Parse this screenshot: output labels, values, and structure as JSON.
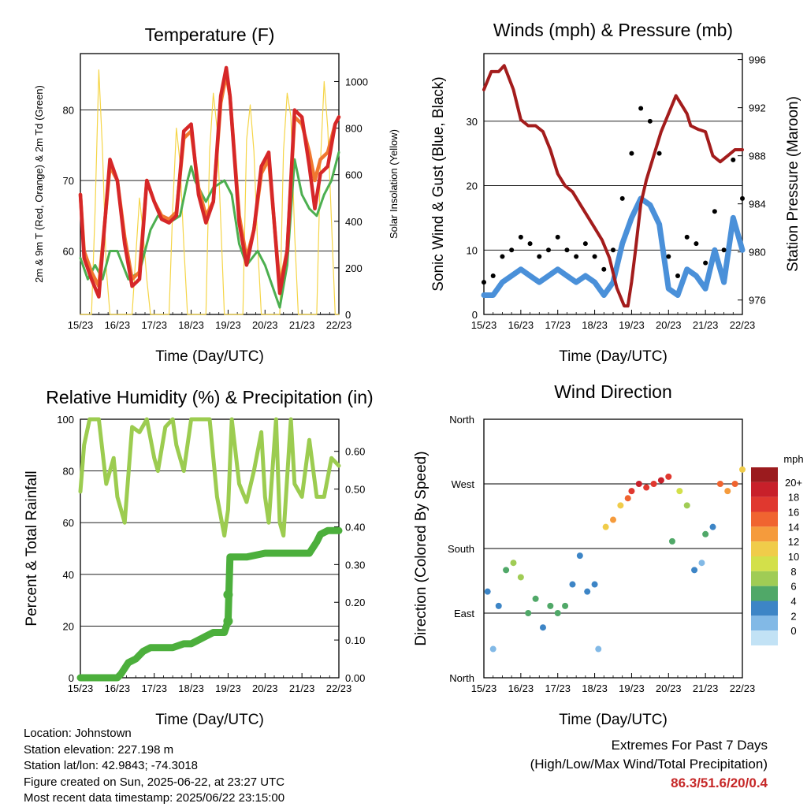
{
  "chart_data": [
    {
      "type": "line",
      "title": "Temperature (F)",
      "xlabel": "Time (Day/UTC)",
      "ylabel": "2m & 9m T (Red, Orange) & 2m Td (Green)",
      "y2label": "Solar Insolation (Yellow)",
      "x_ticks": [
        "15/23",
        "16/23",
        "17/23",
        "18/23",
        "19/23",
        "20/23",
        "21/23",
        "22/23"
      ],
      "y_ticks": [
        60,
        70,
        80
      ],
      "y2_ticks": [
        0,
        200,
        400,
        600,
        800,
        1000
      ],
      "ylim": [
        51,
        88
      ],
      "y2lim": [
        0,
        1120
      ],
      "grid": "horizontal",
      "series": [
        {
          "name": "2m T",
          "color": "#d62728",
          "x": [
            0,
            0.1,
            0.3,
            0.5,
            0.8,
            1.0,
            1.2,
            1.4,
            1.6,
            1.8,
            2.0,
            2.2,
            2.4,
            2.6,
            2.8,
            3.0,
            3.2,
            3.4,
            3.6,
            3.8,
            3.95,
            4.05,
            4.3,
            4.5,
            4.7,
            4.9,
            5.1,
            5.25,
            5.4,
            5.6,
            5.8,
            6.0,
            6.2,
            6.35,
            6.5,
            6.7,
            6.9,
            7.0
          ],
          "y": [
            68,
            59,
            56,
            53.5,
            73,
            70,
            61,
            55,
            56,
            70,
            67,
            64.5,
            64,
            65,
            77,
            78,
            68,
            64,
            67,
            82,
            86,
            82,
            64,
            58,
            63,
            72,
            74,
            64,
            54,
            60,
            80,
            79,
            72,
            66,
            71,
            72,
            78,
            79
          ]
        },
        {
          "name": "9m T",
          "color": "#f07830",
          "x": [
            0,
            0.1,
            0.3,
            0.5,
            0.8,
            1.0,
            1.2,
            1.4,
            1.6,
            1.8,
            2.0,
            2.2,
            2.4,
            2.6,
            2.8,
            3.0,
            3.2,
            3.4,
            3.6,
            3.8,
            3.95,
            4.05,
            4.3,
            4.5,
            4.7,
            4.9,
            5.1,
            5.25,
            5.4,
            5.6,
            5.8,
            6.0,
            6.2,
            6.35,
            6.5,
            6.7,
            6.9,
            7.0
          ],
          "y": [
            68,
            60,
            57,
            55,
            72,
            70,
            62,
            56,
            57,
            70,
            67,
            65,
            64.5,
            65.5,
            76,
            77,
            69,
            65,
            67,
            81,
            85,
            82,
            65,
            59,
            63,
            71,
            73,
            64,
            55,
            60,
            79,
            78,
            74,
            70,
            73,
            74,
            78,
            79
          ]
        },
        {
          "name": "2m Td",
          "color": "#4caf50",
          "x": [
            0,
            0.2,
            0.4,
            0.6,
            0.8,
            1.0,
            1.3,
            1.6,
            1.9,
            2.1,
            2.4,
            2.7,
            2.9,
            3.0,
            3.1,
            3.4,
            3.6,
            3.9,
            4.1,
            4.3,
            4.5,
            4.8,
            5.0,
            5.2,
            5.4,
            5.6,
            5.8,
            6.0,
            6.2,
            6.4,
            6.6,
            6.8,
            7.0
          ],
          "y": [
            59,
            56,
            58,
            56,
            60,
            60,
            56,
            57,
            63,
            65,
            64,
            65,
            70,
            72,
            70,
            67,
            69,
            70,
            68,
            61,
            58,
            60,
            58,
            55,
            52,
            58,
            73,
            68,
            66,
            65,
            68,
            70,
            74
          ]
        },
        {
          "name": "Solar Insolation",
          "color": "#f5d547",
          "axis": "y2",
          "x": [
            0,
            0.1,
            0.2,
            0.3,
            0.4,
            0.5,
            0.6,
            0.7,
            0.8,
            0.9,
            1.0,
            1.1,
            1.2,
            1.3,
            1.4,
            1.5,
            1.6,
            1.7,
            1.8,
            1.9,
            2.0,
            2.1,
            2.2,
            2.3,
            2.4,
            2.5,
            2.6,
            2.7,
            2.8,
            2.9,
            3.0,
            3.1,
            3.2,
            3.3,
            3.4,
            3.5,
            3.6,
            3.7,
            3.8,
            3.9,
            4.0,
            4.1,
            4.2,
            4.3,
            4.4,
            4.5,
            4.6,
            4.7,
            4.8,
            4.9,
            5.0,
            5.1,
            5.2,
            5.3,
            5.4,
            5.5,
            5.6,
            5.7,
            5.8,
            5.9,
            6.0,
            6.1,
            6.2,
            6.3,
            6.4,
            6.5,
            6.6,
            6.7,
            6.8,
            6.9,
            7.0
          ],
          "y": [
            0,
            0,
            0,
            0,
            450,
            1050,
            700,
            200,
            0,
            0,
            0,
            0,
            0,
            0,
            0,
            250,
            500,
            350,
            150,
            0,
            0,
            0,
            0,
            0,
            0,
            450,
            800,
            650,
            300,
            0,
            0,
            0,
            0,
            0,
            0,
            700,
            950,
            800,
            400,
            0,
            0,
            0,
            0,
            0,
            0,
            750,
            900,
            700,
            300,
            0,
            0,
            0,
            0,
            0,
            0,
            700,
            950,
            850,
            350,
            0,
            0,
            0,
            0,
            0,
            0,
            650,
            1000,
            800,
            400,
            0,
            0
          ]
        }
      ]
    },
    {
      "type": "scatter",
      "title": "Winds (mph) & Pressure (mb)",
      "xlabel": "Time (Day/UTC)",
      "ylabel": "Sonic Wind & Gust (Blue, Black)",
      "y2label": "Station Pressure (Maroon)",
      "x_ticks": [
        "15/23",
        "16/23",
        "17/23",
        "18/23",
        "19/23",
        "20/23",
        "21/23",
        "22/23"
      ],
      "y_ticks": [
        0,
        10,
        20,
        30
      ],
      "y2_ticks": [
        976,
        980,
        984,
        988,
        992,
        996
      ],
      "ylim": [
        0,
        40.5
      ],
      "y2lim": [
        974.8,
        996.5
      ],
      "grid": "horizontal",
      "series": [
        {
          "name": "Gust",
          "color": "#000000",
          "x": [
            0,
            0.25,
            0.5,
            0.75,
            1.0,
            1.25,
            1.5,
            1.75,
            2.0,
            2.25,
            2.5,
            2.75,
            3.0,
            3.25,
            3.5,
            3.75,
            4.0,
            4.25,
            4.5,
            4.75,
            5.0,
            5.25,
            5.5,
            5.75,
            6.0,
            6.25,
            6.5,
            6.75,
            7.0
          ],
          "y": [
            5,
            6,
            9,
            10,
            12,
            11,
            9,
            10,
            12,
            10,
            9,
            11,
            9,
            7,
            10,
            18,
            25,
            32,
            30,
            25,
            9,
            6,
            12,
            11,
            8,
            16,
            10,
            24,
            18
          ]
        },
        {
          "name": "Wind",
          "color": "#4a90d9",
          "x": [
            0,
            0.25,
            0.5,
            0.75,
            1.0,
            1.25,
            1.5,
            1.75,
            2.0,
            2.25,
            2.5,
            2.75,
            3.0,
            3.25,
            3.5,
            3.75,
            4.0,
            4.25,
            4.5,
            4.75,
            5.0,
            5.25,
            5.5,
            5.75,
            6.0,
            6.25,
            6.5,
            6.75,
            7.0
          ],
          "y": [
            3,
            3,
            5,
            6,
            7,
            6,
            5,
            6,
            7,
            6,
            5,
            6,
            5,
            3,
            5,
            11,
            15,
            18,
            17,
            14,
            4,
            3,
            7,
            6,
            4,
            10,
            5,
            15,
            10
          ]
        },
        {
          "name": "Pressure",
          "color": "#a31c1c",
          "axis": "y2",
          "x": [
            0,
            0.2,
            0.4,
            0.55,
            0.8,
            1.0,
            1.2,
            1.4,
            1.6,
            1.8,
            2.0,
            2.2,
            2.4,
            2.6,
            2.8,
            3.0,
            3.2,
            3.4,
            3.6,
            3.8,
            3.9,
            4.0,
            4.1,
            4.25,
            4.4,
            4.6,
            4.8,
            5.0,
            5.2,
            5.4,
            5.5,
            5.6,
            5.8,
            6.0,
            6.2,
            6.4,
            6.6,
            6.8,
            7.0
          ],
          "y": [
            993.5,
            995,
            995,
            995.5,
            993.5,
            991,
            990.5,
            990.5,
            990,
            988.5,
            986.5,
            985.5,
            985,
            984,
            983,
            982,
            981,
            979.5,
            977,
            975.5,
            975.5,
            977.5,
            980,
            984,
            986,
            988,
            990,
            991.5,
            993,
            992,
            991.5,
            990.5,
            990.2,
            990,
            988,
            987.5,
            988,
            988.5,
            988.5
          ]
        }
      ]
    },
    {
      "type": "line",
      "title": "Relative Humidity (%) & Precipitation (in)",
      "xlabel": "Time (Day/UTC)",
      "ylabel": "Percent & Total Rainfall",
      "x_ticks": [
        "15/23",
        "16/23",
        "17/23",
        "18/23",
        "19/23",
        "20/23",
        "21/23",
        "22/23"
      ],
      "y_ticks": [
        0,
        20,
        40,
        60,
        80,
        100
      ],
      "y2_ticks": [
        "0.00",
        "0.10",
        "0.20",
        "0.30",
        "0.40",
        "0.50",
        "0.60"
      ],
      "ylim": [
        0,
        100
      ],
      "y2lim": [
        0,
        0.685
      ],
      "grid": "horizontal",
      "series": [
        {
          "name": "Relative Humidity",
          "color": "#9ccc50",
          "x": [
            0,
            0.1,
            0.25,
            0.5,
            0.7,
            0.9,
            1.0,
            1.2,
            1.4,
            1.6,
            1.8,
            2.0,
            2.1,
            2.3,
            2.5,
            2.6,
            2.8,
            3.0,
            3.1,
            3.3,
            3.5,
            3.7,
            3.9,
            4.0,
            4.1,
            4.3,
            4.5,
            4.7,
            4.9,
            5.0,
            5.1,
            5.3,
            5.4,
            5.5,
            5.7,
            5.8,
            6.0,
            6.2,
            6.4,
            6.6,
            6.8,
            7.0
          ],
          "y": [
            72,
            90,
            100,
            100,
            75,
            85,
            70,
            60,
            97,
            95,
            100,
            85,
            80,
            97,
            100,
            90,
            80,
            100,
            100,
            100,
            100,
            70,
            55,
            65,
            100,
            75,
            68,
            80,
            95,
            70,
            60,
            100,
            60,
            55,
            100,
            75,
            70,
            92,
            70,
            70,
            85,
            82
          ]
        },
        {
          "name": "Total Rainfall",
          "color": "#4caf3c",
          "axis": "y2",
          "x": [
            0,
            0.5,
            1.0,
            1.1,
            1.3,
            1.5,
            1.7,
            1.9,
            2.2,
            2.5,
            2.8,
            3.0,
            3.2,
            3.4,
            3.6,
            3.8,
            3.9,
            4.0,
            4.05,
            4.5,
            5.0,
            5.5,
            6.0,
            6.2,
            6.4,
            6.5,
            6.7,
            7.0
          ],
          "y": [
            0,
            0,
            0,
            0.01,
            0.04,
            0.05,
            0.07,
            0.08,
            0.08,
            0.08,
            0.09,
            0.09,
            0.1,
            0.11,
            0.12,
            0.12,
            0.12,
            0.15,
            0.32,
            0.32,
            0.33,
            0.33,
            0.33,
            0.33,
            0.36,
            0.38,
            0.39,
            0.39
          ]
        }
      ]
    },
    {
      "type": "scatter",
      "title": "Wind Direction",
      "xlabel": "Time (Day/UTC)",
      "ylabel": "Direction (Colored By Speed)",
      "x_ticks": [
        "15/23",
        "16/23",
        "17/23",
        "18/23",
        "19/23",
        "20/23",
        "21/23",
        "22/23"
      ],
      "y_ticks": [
        "North",
        "East",
        "South",
        "West",
        "North"
      ],
      "colorbar_title": "mph",
      "colorbar_labels": [
        "20+",
        "18",
        "16",
        "14",
        "12",
        "10",
        "8",
        "6",
        "4",
        "2",
        "0"
      ],
      "colorbar_colors": [
        "#9b1b1e",
        "#c8202a",
        "#e0382f",
        "#f06430",
        "#f59b3c",
        "#f0cc4a",
        "#d3e04a",
        "#a0cc55",
        "#50a868",
        "#3d85c6",
        "#82b9e6",
        "#c2e2f5"
      ],
      "series": [
        {
          "name": "Direction",
          "x": [
            0.1,
            0.25,
            0.4,
            0.6,
            0.8,
            1.0,
            1.2,
            1.4,
            1.6,
            1.8,
            2.0,
            2.2,
            2.4,
            2.6,
            2.8,
            3.0,
            3.1,
            3.3,
            3.5,
            3.7,
            3.9,
            4.0,
            4.2,
            4.4,
            4.6,
            4.8,
            5.0,
            5.1,
            5.3,
            5.5,
            5.7,
            5.9,
            6.0,
            6.2,
            6.4,
            6.6,
            6.8,
            7.0
          ],
          "y": [
            120,
            40,
            100,
            150,
            160,
            140,
            90,
            110,
            70,
            100,
            90,
            100,
            130,
            170,
            120,
            130,
            40,
            210,
            220,
            240,
            250,
            260,
            270,
            265,
            270,
            275,
            280,
            190,
            260,
            240,
            150,
            160,
            200,
            210,
            270,
            260,
            270,
            290
          ],
          "speed": [
            3,
            2,
            3,
            6,
            8,
            7,
            5,
            6,
            4,
            6,
            5,
            6,
            4,
            3,
            3,
            4,
            2,
            12,
            14,
            12,
            16,
            18,
            20,
            17,
            18,
            19,
            18,
            5,
            10,
            8,
            3,
            2,
            5,
            4,
            16,
            14,
            16,
            12
          ]
        }
      ]
    }
  ],
  "info": {
    "location": "Location: Johnstown",
    "elevation": "Station elevation: 227.198 m",
    "latlon": "Station lat/lon: 42.9843; -74.3018",
    "created": "Figure created on Sun, 2025-06-22, at 23:27 UTC",
    "recent": "Most recent data timestamp: 2025/06/22 23:15:00"
  },
  "extremes": {
    "line1": "Extremes For Past 7 Days",
    "line2": "(High/Low/Max Wind/Total Precipitation)",
    "values": "86.3/51.6/20/0.4"
  }
}
